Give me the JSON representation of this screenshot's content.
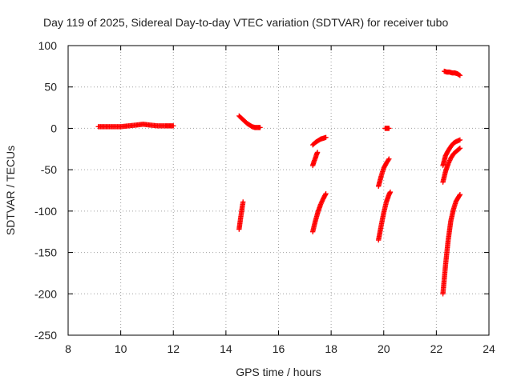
{
  "chart_data": {
    "type": "scatter",
    "title": "Day 119 of 2025, Sidereal Day-to-day VTEC variation (SDTVAR) for receiver tubo",
    "xlabel": "GPS time / hours",
    "ylabel": "SDTVAR / TECUs",
    "xlim": [
      8,
      24
    ],
    "ylim": [
      -250,
      100
    ],
    "xticks": [
      8,
      10,
      12,
      14,
      16,
      18,
      20,
      22,
      24
    ],
    "yticks": [
      -250,
      -200,
      -150,
      -100,
      -50,
      0,
      50,
      100
    ],
    "grid": true,
    "marker": "+",
    "color": "#ff0000",
    "segments": [
      {
        "name": "arc-9h-12h",
        "x_start": 9.15,
        "x_end": 12.0,
        "points": [
          [
            9.15,
            2
          ],
          [
            9.4,
            2
          ],
          [
            9.7,
            2
          ],
          [
            10.0,
            2
          ],
          [
            10.3,
            3
          ],
          [
            10.6,
            4
          ],
          [
            10.85,
            5
          ],
          [
            11.1,
            4
          ],
          [
            11.4,
            3
          ],
          [
            11.7,
            3
          ],
          [
            11.85,
            3
          ],
          [
            12.0,
            3
          ]
        ]
      },
      {
        "name": "arc-14.5h-upper",
        "x_start": 14.5,
        "x_end": 15.3,
        "points": [
          [
            14.5,
            15
          ],
          [
            14.6,
            12
          ],
          [
            14.7,
            9
          ],
          [
            14.8,
            6
          ],
          [
            14.9,
            4
          ],
          [
            15.0,
            2
          ],
          [
            15.1,
            1
          ],
          [
            15.2,
            1
          ],
          [
            15.3,
            1
          ]
        ]
      },
      {
        "name": "arc-14.5h-lower",
        "x_start": 14.5,
        "x_end": 14.65,
        "points": [
          [
            14.5,
            -122
          ],
          [
            14.53,
            -115
          ],
          [
            14.56,
            -108
          ],
          [
            14.59,
            -102
          ],
          [
            14.62,
            -95
          ],
          [
            14.65,
            -89
          ]
        ]
      },
      {
        "name": "arc-17.3h-upper",
        "x_start": 17.3,
        "x_end": 17.8,
        "points": [
          [
            17.3,
            -20
          ],
          [
            17.4,
            -17
          ],
          [
            17.5,
            -15
          ],
          [
            17.6,
            -13
          ],
          [
            17.7,
            -12
          ],
          [
            17.8,
            -11
          ]
        ]
      },
      {
        "name": "arc-17.3h-mid",
        "x_start": 17.3,
        "x_end": 17.48,
        "points": [
          [
            17.3,
            -45
          ],
          [
            17.35,
            -40
          ],
          [
            17.4,
            -36
          ],
          [
            17.44,
            -32
          ],
          [
            17.48,
            -29
          ]
        ]
      },
      {
        "name": "arc-17.3h-lower",
        "x_start": 17.3,
        "x_end": 17.8,
        "points": [
          [
            17.3,
            -125
          ],
          [
            17.4,
            -112
          ],
          [
            17.5,
            -101
          ],
          [
            17.6,
            -92
          ],
          [
            17.7,
            -85
          ],
          [
            17.8,
            -79
          ]
        ]
      },
      {
        "name": "arc-20.1h-flat",
        "x_start": 20.05,
        "x_end": 20.2,
        "points": [
          [
            20.05,
            0
          ],
          [
            20.1,
            0
          ],
          [
            20.15,
            0
          ],
          [
            20.2,
            0
          ]
        ]
      },
      {
        "name": "arc-19.8h-upper",
        "x_start": 19.8,
        "x_end": 20.2,
        "points": [
          [
            19.8,
            -70
          ],
          [
            19.9,
            -58
          ],
          [
            20.0,
            -48
          ],
          [
            20.1,
            -42
          ],
          [
            20.2,
            -37
          ]
        ]
      },
      {
        "name": "arc-19.8h-lower",
        "x_start": 19.8,
        "x_end": 20.25,
        "points": [
          [
            19.8,
            -135
          ],
          [
            19.9,
            -118
          ],
          [
            20.0,
            -102
          ],
          [
            20.1,
            -89
          ],
          [
            20.2,
            -80
          ],
          [
            20.25,
            -77
          ]
        ]
      },
      {
        "name": "arc-22.3h-top",
        "x_start": 22.3,
        "x_end": 22.9,
        "points": [
          [
            22.3,
            69
          ],
          [
            22.4,
            68
          ],
          [
            22.5,
            68
          ],
          [
            22.6,
            67
          ],
          [
            22.7,
            67
          ],
          [
            22.8,
            66
          ],
          [
            22.9,
            64
          ]
        ]
      },
      {
        "name": "arc-22.3h-upper",
        "x_start": 22.25,
        "x_end": 22.9,
        "points": [
          [
            22.25,
            -45
          ],
          [
            22.35,
            -33
          ],
          [
            22.45,
            -27
          ],
          [
            22.55,
            -22
          ],
          [
            22.65,
            -18
          ],
          [
            22.75,
            -16
          ],
          [
            22.9,
            -14
          ]
        ]
      },
      {
        "name": "arc-22.3h-mid",
        "x_start": 22.25,
        "x_end": 22.9,
        "points": [
          [
            22.25,
            -65
          ],
          [
            22.35,
            -52
          ],
          [
            22.45,
            -43
          ],
          [
            22.55,
            -36
          ],
          [
            22.65,
            -31
          ],
          [
            22.75,
            -28
          ],
          [
            22.9,
            -24
          ]
        ]
      },
      {
        "name": "arc-22.3h-lower",
        "x_start": 22.25,
        "x_end": 22.9,
        "points": [
          [
            22.25,
            -200
          ],
          [
            22.35,
            -165
          ],
          [
            22.45,
            -135
          ],
          [
            22.55,
            -112
          ],
          [
            22.65,
            -98
          ],
          [
            22.75,
            -88
          ],
          [
            22.9,
            -80
          ]
        ]
      }
    ]
  }
}
